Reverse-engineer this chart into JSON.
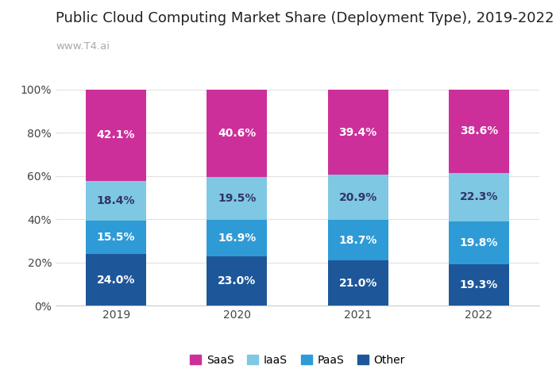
{
  "title": "Public Cloud Computing Market Share (Deployment Type), 2019-2022",
  "subtitle": "www.T4.ai",
  "years": [
    "2019",
    "2020",
    "2021",
    "2022"
  ],
  "segments": {
    "Other": [
      24.0,
      23.0,
      21.0,
      19.3
    ],
    "PaaS": [
      15.5,
      16.9,
      18.7,
      19.8
    ],
    "IaaS": [
      18.4,
      19.5,
      20.9,
      22.3
    ],
    "SaaS": [
      42.1,
      40.6,
      39.4,
      38.6
    ]
  },
  "colors": {
    "Other": "#1e5799",
    "PaaS": "#2e9bd6",
    "IaaS": "#7ec8e3",
    "SaaS": "#cc2f9a"
  },
  "text_colors": {
    "Other": "#ffffff",
    "PaaS": "#ffffff",
    "IaaS": "#333366",
    "SaaS": "#ffffff"
  },
  "legend_order": [
    "SaaS",
    "IaaS",
    "PaaS",
    "Other"
  ],
  "bar_width": 0.5,
  "ylim": [
    0,
    100
  ],
  "yticks": [
    0,
    20,
    40,
    60,
    80,
    100
  ],
  "ytick_labels": [
    "0%",
    "20%",
    "40%",
    "60%",
    "80%",
    "100%"
  ],
  "background_color": "#ffffff",
  "grid_color": "#e0e0e0",
  "title_fontsize": 13,
  "subtitle_fontsize": 9.5,
  "label_fontsize": 10,
  "tick_fontsize": 10,
  "legend_fontsize": 10
}
